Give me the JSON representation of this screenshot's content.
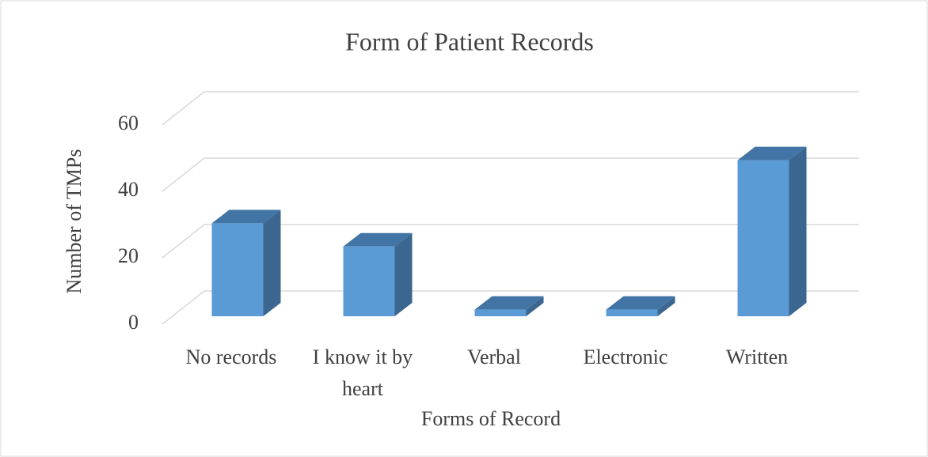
{
  "chart_data": {
    "type": "bar3d",
    "title": "Form of Patient Records",
    "x_label": "Forms of Record",
    "y_label": "Number of TMPs",
    "categories": [
      "No records",
      "I know it by heart",
      "Verbal",
      "Electronic",
      "Written"
    ],
    "values": [
      28,
      21,
      2,
      2,
      47
    ],
    "color": "#5b9bd5",
    "ylim": [
      0,
      60
    ],
    "yticks": [
      0,
      20,
      40,
      60
    ],
    "grid": true
  }
}
